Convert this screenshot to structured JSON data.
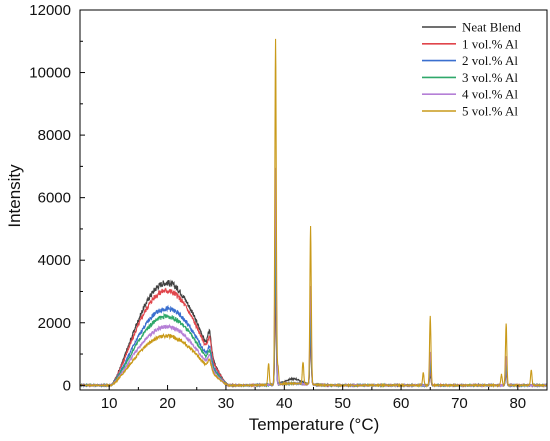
{
  "chart_data": {
    "type": "line",
    "xlabel": "Temperature (°C)",
    "ylabel": "Intensity",
    "xlim": [
      5,
      85
    ],
    "ylim": [
      -150,
      12000
    ],
    "xticks": [
      10,
      20,
      30,
      40,
      50,
      60,
      70,
      80
    ],
    "yticks": [
      0,
      2000,
      4000,
      6000,
      8000,
      10000,
      12000
    ],
    "legend_position": "top-right",
    "grid": false,
    "series": [
      {
        "name": "Neat Blend",
        "color": "#404040",
        "hump_peak": 3280,
        "peaks": [
          [
            27.2,
            650,
            0.3
          ],
          [
            38.5,
            2900,
            0.12
          ],
          [
            41.5,
            150,
            1.2
          ],
          [
            44.5,
            1500,
            0.12
          ],
          [
            65.0,
            350,
            0.12
          ],
          [
            78.0,
            380,
            0.12
          ]
        ]
      },
      {
        "name": "1 vol.% Al",
        "color": "#e0454b",
        "hump_peak": 3030,
        "peaks": [
          [
            27.2,
            550,
            0.3
          ],
          [
            38.5,
            3400,
            0.12
          ],
          [
            44.5,
            1700,
            0.12
          ],
          [
            65.0,
            450,
            0.12
          ],
          [
            78.0,
            450,
            0.12
          ]
        ]
      },
      {
        "name": "2 vol.% Al",
        "color": "#3a6fcf",
        "hump_peak": 2450,
        "peaks": [
          [
            27.2,
            450,
            0.3
          ],
          [
            38.5,
            4200,
            0.12
          ],
          [
            44.5,
            2000,
            0.12
          ],
          [
            65.0,
            600,
            0.12
          ],
          [
            78.0,
            550,
            0.12
          ]
        ]
      },
      {
        "name": "3 vol.% Al",
        "color": "#2fa86a",
        "hump_peak": 2200,
        "peaks": [
          [
            27.2,
            400,
            0.3
          ],
          [
            38.5,
            5500,
            0.12
          ],
          [
            44.5,
            2500,
            0.12
          ],
          [
            65.0,
            800,
            0.12
          ],
          [
            78.0,
            700,
            0.12
          ]
        ]
      },
      {
        "name": "4 vol.% Al",
        "color": "#b57fd6",
        "hump_peak": 1870,
        "peaks": [
          [
            27.2,
            350,
            0.3
          ],
          [
            38.5,
            7000,
            0.12
          ],
          [
            44.5,
            3200,
            0.12
          ],
          [
            65.0,
            1100,
            0.12
          ],
          [
            78.0,
            900,
            0.12
          ]
        ]
      },
      {
        "name": "5 vol.% Al",
        "color": "#c99a1a",
        "hump_peak": 1580,
        "peaks": [
          [
            27.2,
            300,
            0.3
          ],
          [
            37.3,
            700,
            0.12
          ],
          [
            38.5,
            11100,
            0.12
          ],
          [
            38.9,
            600,
            0.12
          ],
          [
            43.2,
            700,
            0.12
          ],
          [
            44.5,
            5000,
            0.12
          ],
          [
            63.8,
            400,
            0.12
          ],
          [
            65.0,
            2200,
            0.12
          ],
          [
            77.2,
            350,
            0.12
          ],
          [
            78.0,
            1950,
            0.12
          ],
          [
            82.3,
            500,
            0.12
          ]
        ]
      }
    ]
  }
}
